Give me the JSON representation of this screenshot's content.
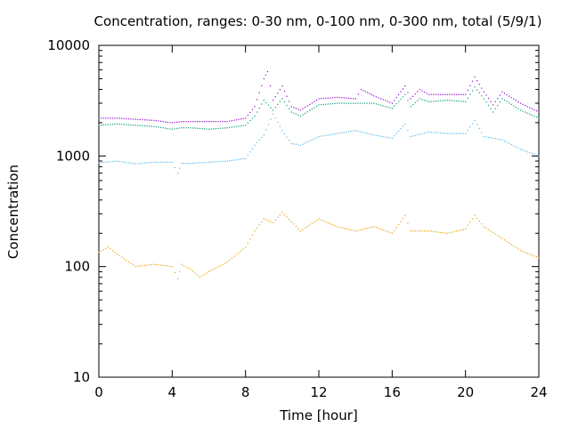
{
  "chart_data": {
    "type": "scatter",
    "title": "Concentration, ranges: 0-30 nm, 0-100 nm, 0-300 nm, total (5/9/1)",
    "xlabel": "Time [hour]",
    "ylabel": "Concentration",
    "xlim": [
      0,
      24
    ],
    "ylim": [
      10,
      10000
    ],
    "yscale": "log",
    "xticks": [
      0,
      4,
      8,
      12,
      16,
      20,
      24
    ],
    "yticks": [
      10,
      100,
      1000,
      10000
    ],
    "xtick_labels": [
      "0",
      "4",
      "8",
      "12",
      "16",
      "20",
      "24"
    ],
    "ytick_labels": [
      "10",
      "100",
      "1000",
      "10000"
    ],
    "grid": false,
    "legend": "none",
    "marker": "dots",
    "series": [
      {
        "color": "#9400d3",
        "x": [
          0,
          1,
          2,
          3,
          4,
          4.5,
          5,
          6,
          7,
          8,
          8.5,
          9,
          9.2,
          9.5,
          10,
          10.5,
          11,
          12,
          13,
          14,
          14.3,
          15,
          16,
          16.7,
          17,
          17.5,
          18,
          19,
          20,
          20.5,
          21,
          21.5,
          22,
          23,
          24
        ],
        "y": [
          2200,
          2200,
          2150,
          2100,
          2000,
          2050,
          2050,
          2050,
          2050,
          2200,
          2800,
          5000,
          5800,
          3200,
          4300,
          2800,
          2600,
          3300,
          3400,
          3300,
          4000,
          3500,
          3000,
          4300,
          3300,
          4000,
          3600,
          3600,
          3600,
          5200,
          3800,
          2900,
          3800,
          3000,
          2500
        ]
      },
      {
        "color": "#009e73",
        "x": [
          0,
          1,
          2,
          3,
          4,
          4.5,
          5,
          6,
          7,
          8,
          8.5,
          9,
          9.5,
          10,
          10.5,
          11,
          12,
          13,
          14,
          15,
          16,
          16.7,
          17,
          17.5,
          18,
          19,
          20,
          20.5,
          21,
          21.5,
          22,
          23,
          24
        ],
        "y": [
          1900,
          1950,
          1900,
          1850,
          1750,
          1800,
          1800,
          1750,
          1800,
          1900,
          2300,
          3200,
          2600,
          3300,
          2500,
          2300,
          2900,
          3000,
          3000,
          3000,
          2700,
          3600,
          2800,
          3300,
          3100,
          3200,
          3100,
          4200,
          3300,
          2500,
          3300,
          2600,
          2200
        ]
      },
      {
        "color": "#56b4e9",
        "x": [
          0,
          1,
          2,
          3,
          4,
          4.3,
          4.5,
          5,
          6,
          7,
          8,
          8.5,
          9,
          9.5,
          10,
          10.5,
          11,
          12,
          13,
          14,
          15,
          16,
          16.7,
          17,
          18,
          19,
          20,
          20.5,
          21,
          22,
          23,
          24
        ],
        "y": [
          870,
          900,
          850,
          880,
          880,
          700,
          860,
          860,
          880,
          900,
          950,
          1250,
          1550,
          2400,
          1700,
          1300,
          1250,
          1500,
          1600,
          1700,
          1550,
          1450,
          1950,
          1500,
          1650,
          1600,
          1600,
          2100,
          1500,
          1400,
          1150,
          1000
        ]
      },
      {
        "color": "#e69f00",
        "x": [
          0,
          0.5,
          1,
          2,
          3,
          4,
          4.3,
          4.5,
          5,
          5.5,
          6,
          7,
          8,
          8.5,
          9,
          9.5,
          10,
          11,
          12,
          13,
          14,
          15,
          16,
          16.7,
          17,
          18,
          19,
          20,
          20.5,
          21,
          22,
          23,
          24
        ],
        "y": [
          135,
          150,
          130,
          100,
          105,
          100,
          78,
          105,
          95,
          80,
          90,
          110,
          150,
          210,
          270,
          250,
          310,
          210,
          270,
          230,
          210,
          230,
          200,
          290,
          210,
          210,
          200,
          220,
          290,
          230,
          180,
          140,
          120
        ]
      }
    ]
  }
}
